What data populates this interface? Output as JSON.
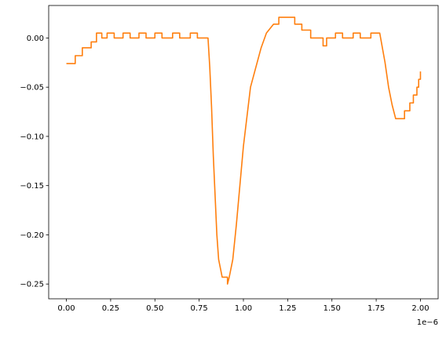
{
  "chart_data": {
    "type": "line",
    "title": "",
    "xlabel": "",
    "ylabel": "",
    "x_offset_label": "1e−6",
    "xlim": [
      -0.1,
      2.1
    ],
    "ylim": [
      -0.265,
      0.033
    ],
    "grid": false,
    "line_color": "#ff7f0e",
    "x_ticks": [
      0.0,
      0.25,
      0.5,
      0.75,
      1.0,
      1.25,
      1.5,
      1.75,
      2.0
    ],
    "x_tick_labels": [
      "0.00",
      "0.25",
      "0.50",
      "0.75",
      "1.00",
      "1.25",
      "1.50",
      "1.75",
      "2.00"
    ],
    "y_ticks": [
      0.0,
      -0.05,
      -0.1,
      -0.15,
      -0.2,
      -0.25
    ],
    "y_tick_labels": [
      "0.00",
      "−0.05",
      "−0.10",
      "−0.15",
      "−0.20",
      "−0.25"
    ],
    "series": [
      {
        "values": [
          [
            0.0,
            -0.026
          ],
          [
            0.05,
            -0.026
          ],
          [
            0.05,
            -0.018
          ],
          [
            0.09,
            -0.018
          ],
          [
            0.09,
            -0.01
          ],
          [
            0.14,
            -0.01
          ],
          [
            0.14,
            -0.004
          ],
          [
            0.17,
            -0.004
          ],
          [
            0.17,
            0.005
          ],
          [
            0.2,
            0.005
          ],
          [
            0.2,
            0.0
          ],
          [
            0.23,
            0.0
          ],
          [
            0.23,
            0.005
          ],
          [
            0.27,
            0.005
          ],
          [
            0.27,
            0.0
          ],
          [
            0.32,
            0.0
          ],
          [
            0.32,
            0.005
          ],
          [
            0.36,
            0.005
          ],
          [
            0.36,
            0.0
          ],
          [
            0.41,
            0.0
          ],
          [
            0.41,
            0.005
          ],
          [
            0.45,
            0.005
          ],
          [
            0.45,
            0.0
          ],
          [
            0.5,
            0.0
          ],
          [
            0.5,
            0.005
          ],
          [
            0.54,
            0.005
          ],
          [
            0.54,
            0.0
          ],
          [
            0.6,
            0.0
          ],
          [
            0.6,
            0.005
          ],
          [
            0.64,
            0.005
          ],
          [
            0.64,
            0.0
          ],
          [
            0.7,
            0.0
          ],
          [
            0.7,
            0.005
          ],
          [
            0.74,
            0.005
          ],
          [
            0.74,
            0.0
          ],
          [
            0.8,
            0.0
          ],
          [
            0.81,
            -0.03
          ],
          [
            0.82,
            -0.07
          ],
          [
            0.83,
            -0.12
          ],
          [
            0.84,
            -0.16
          ],
          [
            0.85,
            -0.2
          ],
          [
            0.86,
            -0.225
          ],
          [
            0.88,
            -0.243
          ],
          [
            0.91,
            -0.243
          ],
          [
            0.91,
            -0.25
          ],
          [
            0.92,
            -0.243
          ],
          [
            0.94,
            -0.225
          ],
          [
            0.96,
            -0.19
          ],
          [
            0.98,
            -0.15
          ],
          [
            1.0,
            -0.11
          ],
          [
            1.02,
            -0.08
          ],
          [
            1.04,
            -0.05
          ],
          [
            1.07,
            -0.03
          ],
          [
            1.1,
            -0.01
          ],
          [
            1.13,
            0.005
          ],
          [
            1.17,
            0.014
          ],
          [
            1.2,
            0.014
          ],
          [
            1.2,
            0.021
          ],
          [
            1.29,
            0.021
          ],
          [
            1.29,
            0.014
          ],
          [
            1.33,
            0.014
          ],
          [
            1.33,
            0.008
          ],
          [
            1.38,
            0.008
          ],
          [
            1.38,
            0.0
          ],
          [
            1.45,
            0.0
          ],
          [
            1.45,
            -0.008
          ],
          [
            1.47,
            -0.008
          ],
          [
            1.47,
            0.0
          ],
          [
            1.52,
            0.0
          ],
          [
            1.52,
            0.005
          ],
          [
            1.56,
            0.005
          ],
          [
            1.56,
            0.0
          ],
          [
            1.62,
            0.0
          ],
          [
            1.62,
            0.005
          ],
          [
            1.66,
            0.005
          ],
          [
            1.66,
            0.0
          ],
          [
            1.72,
            0.0
          ],
          [
            1.72,
            0.005
          ],
          [
            1.77,
            0.005
          ],
          [
            1.78,
            -0.005
          ],
          [
            1.8,
            -0.025
          ],
          [
            1.82,
            -0.05
          ],
          [
            1.84,
            -0.068
          ],
          [
            1.86,
            -0.082
          ],
          [
            1.91,
            -0.082
          ],
          [
            1.91,
            -0.074
          ],
          [
            1.94,
            -0.074
          ],
          [
            1.94,
            -0.066
          ],
          [
            1.96,
            -0.066
          ],
          [
            1.96,
            -0.058
          ],
          [
            1.98,
            -0.058
          ],
          [
            1.98,
            -0.05
          ],
          [
            1.99,
            -0.05
          ],
          [
            1.99,
            -0.042
          ],
          [
            2.0,
            -0.042
          ],
          [
            2.0,
            -0.034
          ]
        ]
      }
    ]
  }
}
